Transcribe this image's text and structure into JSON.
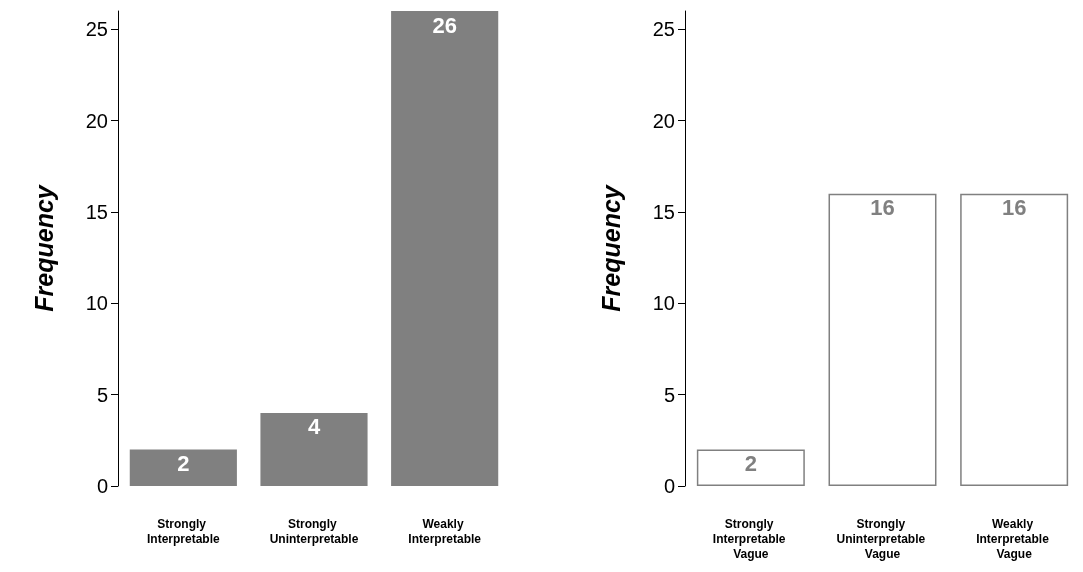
{
  "chart_data": [
    {
      "type": "bar",
      "categories": [
        "Strongly Interpretable",
        "Strongly Uninterpretable",
        "Weakly Interpretable"
      ],
      "values": [
        2,
        4,
        26
      ],
      "color": "#808080",
      "ylabel": "Frequency",
      "ylim": [
        0,
        26
      ],
      "yticks": [
        0,
        5,
        10,
        15,
        20,
        25
      ],
      "data_labels": true
    },
    {
      "type": "bar",
      "categories": [
        "Strongly Interpretable Vague",
        "Strongly Uninterpretable Vague",
        "Weakly Interpretable Vague"
      ],
      "values": [
        2,
        16,
        16
      ],
      "color": "#ffffff",
      "ylabel": "Frequency",
      "ylim": [
        0,
        26
      ],
      "yticks": [
        0,
        5,
        10,
        15,
        20,
        25
      ],
      "data_labels": true
    }
  ]
}
